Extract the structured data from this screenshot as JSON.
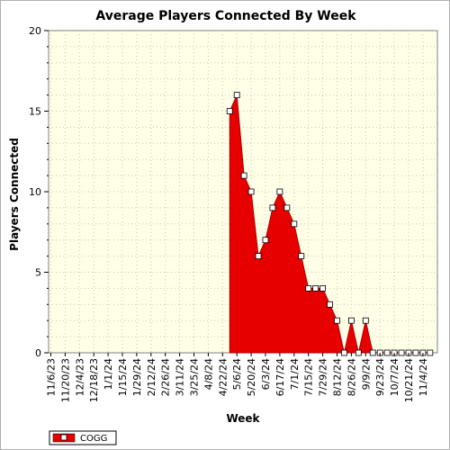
{
  "chart_data": {
    "type": "area",
    "title": "Average Players Connected By Week",
    "xlabel": "Week",
    "ylabel": "Players Connected",
    "ylim": [
      0,
      20
    ],
    "yticks": [
      0,
      5,
      10,
      15,
      20
    ],
    "grid": true,
    "legend_position": "bottom-left",
    "x_tick_labels": [
      "11/6/23",
      "11/20/23",
      "12/4/23",
      "12/18/23",
      "1/1/24",
      "1/15/24",
      "1/29/24",
      "2/12/24",
      "2/26/24",
      "3/11/24",
      "3/25/24",
      "4/8/24",
      "4/22/24",
      "5/6/24",
      "5/20/24",
      "6/3/24",
      "6/17/24",
      "7/1/24",
      "7/15/24",
      "7/29/24",
      "8/12/24",
      "8/26/24",
      "9/9/24",
      "9/23/24",
      "10/7/24",
      "10/21/24",
      "11/4/24"
    ],
    "weeks": [
      "4/29/24",
      "5/6/24",
      "5/13/24",
      "5/20/24",
      "5/27/24",
      "6/3/24",
      "6/10/24",
      "6/17/24",
      "6/24/24",
      "7/1/24",
      "7/8/24",
      "7/15/24",
      "7/22/24",
      "7/29/24",
      "8/5/24",
      "8/12/24",
      "8/19/24",
      "8/26/24",
      "9/2/24",
      "9/9/24",
      "9/16/24",
      "9/23/24",
      "9/30/24",
      "10/7/24",
      "10/14/24",
      "10/21/24",
      "10/28/24",
      "11/4/24",
      "11/11/24"
    ],
    "series": [
      {
        "name": "COGG",
        "color": "#e60000",
        "values": [
          15,
          16,
          11,
          10,
          6,
          7,
          9,
          10,
          9,
          8,
          6,
          4,
          4,
          4,
          3,
          2,
          0,
          2,
          0,
          2,
          0,
          0,
          0,
          0,
          0,
          0,
          0,
          0,
          0
        ]
      }
    ]
  }
}
